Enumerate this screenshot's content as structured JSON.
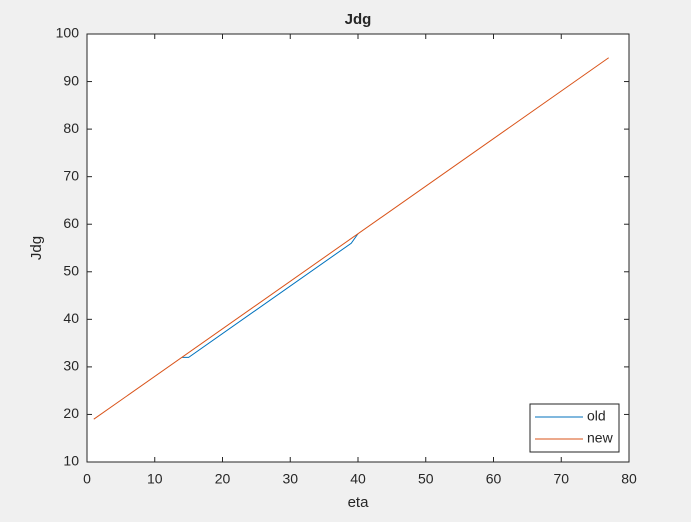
{
  "chart_data": {
    "type": "line",
    "title": "Jdg",
    "xlabel": "eta",
    "ylabel": "Jdg",
    "xlim": [
      0,
      80
    ],
    "xticks": [
      0,
      10,
      20,
      30,
      40,
      50,
      60,
      70,
      80
    ],
    "ylim": [
      10,
      100
    ],
    "yticks": [
      10,
      20,
      30,
      40,
      50,
      60,
      70,
      80,
      90,
      100
    ],
    "grid": false,
    "legend": "southeast",
    "series": [
      {
        "name": "old",
        "color": "#0072bd",
        "x": [
          14,
          15,
          39,
          40
        ],
        "values": [
          32,
          32,
          56,
          58
        ]
      },
      {
        "name": "new",
        "color": "#d95319",
        "x": [
          1,
          77
        ],
        "values": [
          19,
          95
        ]
      }
    ]
  }
}
